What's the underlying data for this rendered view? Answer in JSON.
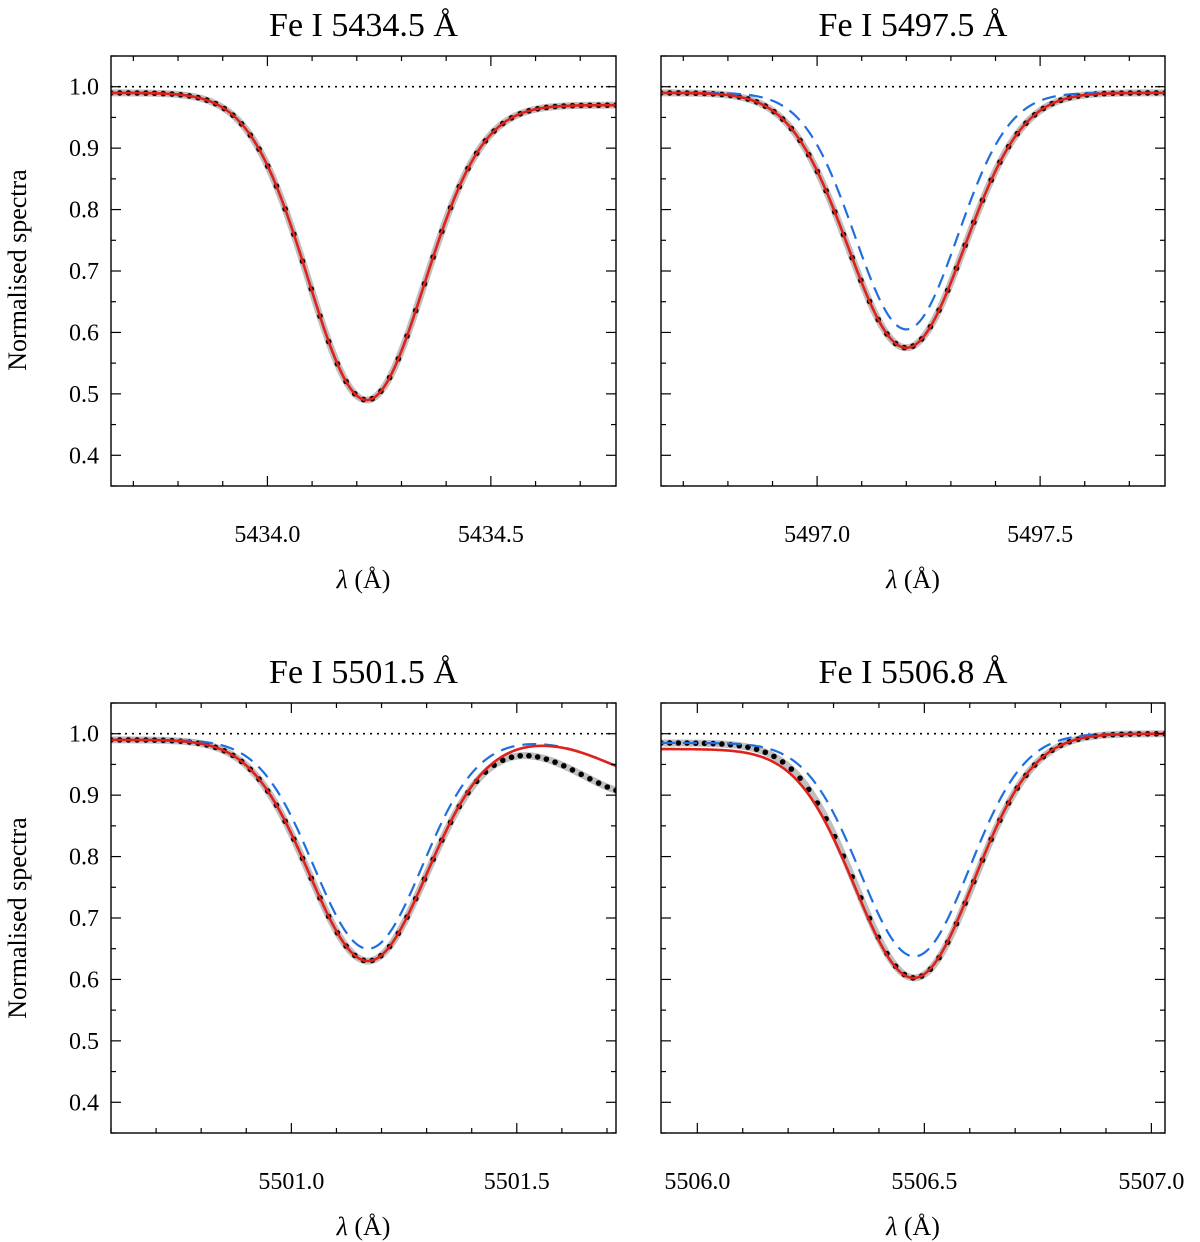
{
  "figure": {
    "ylabel": "Normalised spectra",
    "xlabel": "(Å)",
    "xlabel_symbol": "λ",
    "colors": {
      "observed": "#000000",
      "observed_band": "#bfbfbf",
      "model_red": "#e0201b",
      "model_blue": "#1f6fe0",
      "continuum": "#000000"
    },
    "legend": "none"
  },
  "chart_data": [
    {
      "type": "line",
      "title": "Fe I  5434.5 Å",
      "xlim": [
        5433.65,
        5434.78
      ],
      "ylim": [
        0.35,
        1.05
      ],
      "xticks": [
        5434.0,
        5434.5
      ],
      "xtick_labels": [
        "5434.0",
        "5434.5"
      ],
      "yticks": [
        0.4,
        0.5,
        0.6,
        0.7,
        0.8,
        0.9,
        1.0
      ],
      "ytick_labels": [
        "0.4",
        "0.5",
        "0.6",
        "0.7",
        "0.8",
        "0.9",
        "1.0"
      ],
      "continuum": 1.0,
      "line": {
        "center": 5434.22,
        "depth": 0.49,
        "sigma": 0.13,
        "base_left": 0.99,
        "base_right": 0.97
      },
      "series": [
        {
          "name": "observed",
          "style": "dots"
        },
        {
          "name": "model_red",
          "style": "solid"
        }
      ]
    },
    {
      "type": "line",
      "title": "Fe I  5497.5 Å",
      "xlim": [
        5496.65,
        5497.78
      ],
      "ylim": [
        0.35,
        1.05
      ],
      "xticks": [
        5497.0,
        5497.5
      ],
      "xtick_labels": [
        "5497.0",
        "5497.5"
      ],
      "yticks": [
        0.4,
        0.5,
        0.6,
        0.7,
        0.8,
        0.9,
        1.0
      ],
      "ytick_labels": [
        "0.4",
        "0.5",
        "0.6",
        "0.7",
        "0.8",
        "0.9",
        "1.0"
      ],
      "continuum": 1.0,
      "line": {
        "center": 5497.2,
        "depth": 0.415,
        "sigma": 0.13,
        "base_left": 0.99,
        "base_right": 0.99
      },
      "blue_line": {
        "center": 5497.2,
        "depth": 0.385,
        "sigma": 0.115,
        "base_left": 0.99,
        "base_right": 0.99
      },
      "series": [
        {
          "name": "observed",
          "style": "dots"
        },
        {
          "name": "model_red",
          "style": "solid"
        },
        {
          "name": "model_blue",
          "style": "dashed"
        }
      ]
    },
    {
      "type": "line",
      "title": "Fe I  5501.5 Å",
      "xlim": [
        5500.6,
        5501.72
      ],
      "ylim": [
        0.35,
        1.05
      ],
      "xticks": [
        5501.0,
        5501.5
      ],
      "xtick_labels": [
        "5501.0",
        "5501.5"
      ],
      "yticks": [
        0.4,
        0.5,
        0.6,
        0.7,
        0.8,
        0.9,
        1.0
      ],
      "ytick_labels": [
        "0.4",
        "0.5",
        "0.6",
        "0.7",
        "0.8",
        "0.9",
        "1.0"
      ],
      "continuum": 1.0,
      "line": {
        "center": 5501.17,
        "depth": 0.36,
        "sigma": 0.13,
        "base_left": 0.99,
        "base_right": 0.99
      },
      "blue_line": {
        "center": 5501.17,
        "depth": 0.34,
        "sigma": 0.12,
        "base_left": 0.99,
        "base_right": 0.99
      },
      "obs_extra": {
        "center": 5501.78,
        "depth": 0.09,
        "sigma": 0.14
      },
      "red_extra": {
        "center": 5501.82,
        "depth": 0.06,
        "sigma": 0.12
      },
      "series": [
        {
          "name": "observed",
          "style": "dots"
        },
        {
          "name": "model_red",
          "style": "solid"
        },
        {
          "name": "model_blue",
          "style": "dashed"
        }
      ]
    },
    {
      "type": "line",
      "title": "Fe I  5506.8 Å",
      "xlim": [
        5505.92,
        5507.03
      ],
      "ylim": [
        0.35,
        1.05
      ],
      "xticks": [
        5506.0,
        5506.5,
        5507.0
      ],
      "xtick_labels": [
        "5506.0",
        "5506.5",
        "5507.0"
      ],
      "yticks": [
        0.4,
        0.5,
        0.6,
        0.7,
        0.8,
        0.9,
        1.0
      ],
      "ytick_labels": [
        "0.4",
        "0.5",
        "0.6",
        "0.7",
        "0.8",
        "0.9",
        "1.0"
      ],
      "continuum": 1.0,
      "line": {
        "center": 5506.48,
        "depth": 0.39,
        "sigma": 0.13,
        "base_left": 0.985,
        "base_right": 1.0
      },
      "red_line": {
        "center": 5506.48,
        "depth": 0.385,
        "sigma": 0.13,
        "base_left": 0.975,
        "base_right": 1.0
      },
      "blue_line": {
        "center": 5506.48,
        "depth": 0.355,
        "sigma": 0.12,
        "base_left": 0.985,
        "base_right": 1.0
      },
      "series": [
        {
          "name": "observed",
          "style": "dots"
        },
        {
          "name": "model_red",
          "style": "solid"
        },
        {
          "name": "model_blue",
          "style": "dashed"
        }
      ]
    }
  ]
}
